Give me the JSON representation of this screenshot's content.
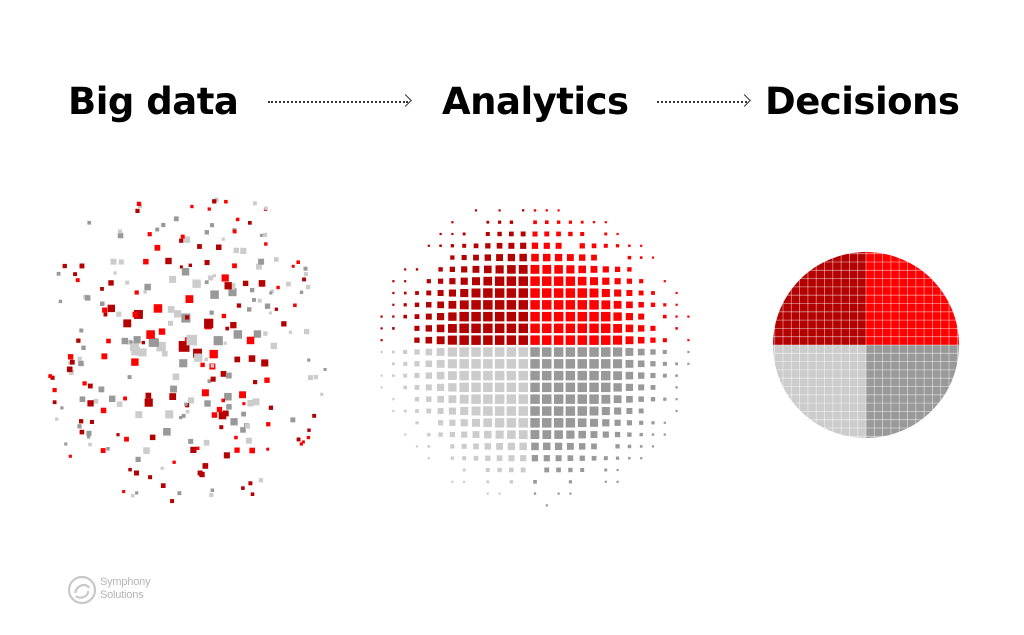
{
  "stages": {
    "big_data": "Big data",
    "analytics": "Analytics",
    "decisions": "Decisions"
  },
  "logo": {
    "line1": "Symphony",
    "line2": "Solutions"
  },
  "colors": {
    "red": "#ff0000",
    "dark_red": "#b30000",
    "gray": "#999999",
    "light_gray": "#cccccc",
    "text": "#000000",
    "logo": "#b5b5b5"
  },
  "decision_quadrants": [
    {
      "name": "top-left",
      "color": "#b30000"
    },
    {
      "name": "top-right",
      "color": "#ff0000"
    },
    {
      "name": "bottom-left",
      "color": "#cccccc"
    },
    {
      "name": "bottom-right",
      "color": "#999999"
    }
  ]
}
